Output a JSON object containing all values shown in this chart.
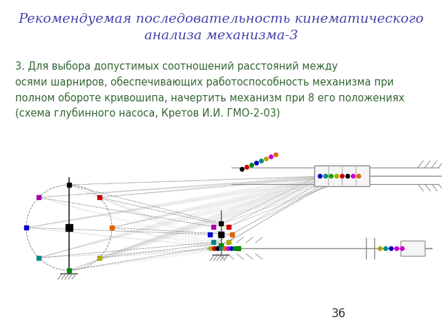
{
  "title_line1": "Рекомендуемая последовательность кинематического",
  "title_line2": "анализа механизма-3",
  "title_color": "#4444aa",
  "title_fontsize": 14,
  "body_text": "3. Для выбора допустимых соотношений расстояний между\nосями шарниров, обеспечивающих работоспособность механизма при\nполном обороте кривошипа, начертить механизм при 8 его положениях\n(схема глубинного насоса, Кретов И.И. ГМО-2-03)",
  "body_color": "#336633",
  "body_fontsize": 10.5,
  "page_number": "36",
  "bg_color": "#ffffff",
  "colors8": [
    "#000000",
    "#cc0000",
    "#dd6600",
    "#aaaa00",
    "#008800",
    "#008888",
    "#0000cc",
    "#aa00aa"
  ],
  "colors8b": [
    "#cc00cc",
    "#0000bb",
    "#008888",
    "#008800",
    "#aaaa00",
    "#dd6600",
    "#cc0000",
    "#000000"
  ]
}
